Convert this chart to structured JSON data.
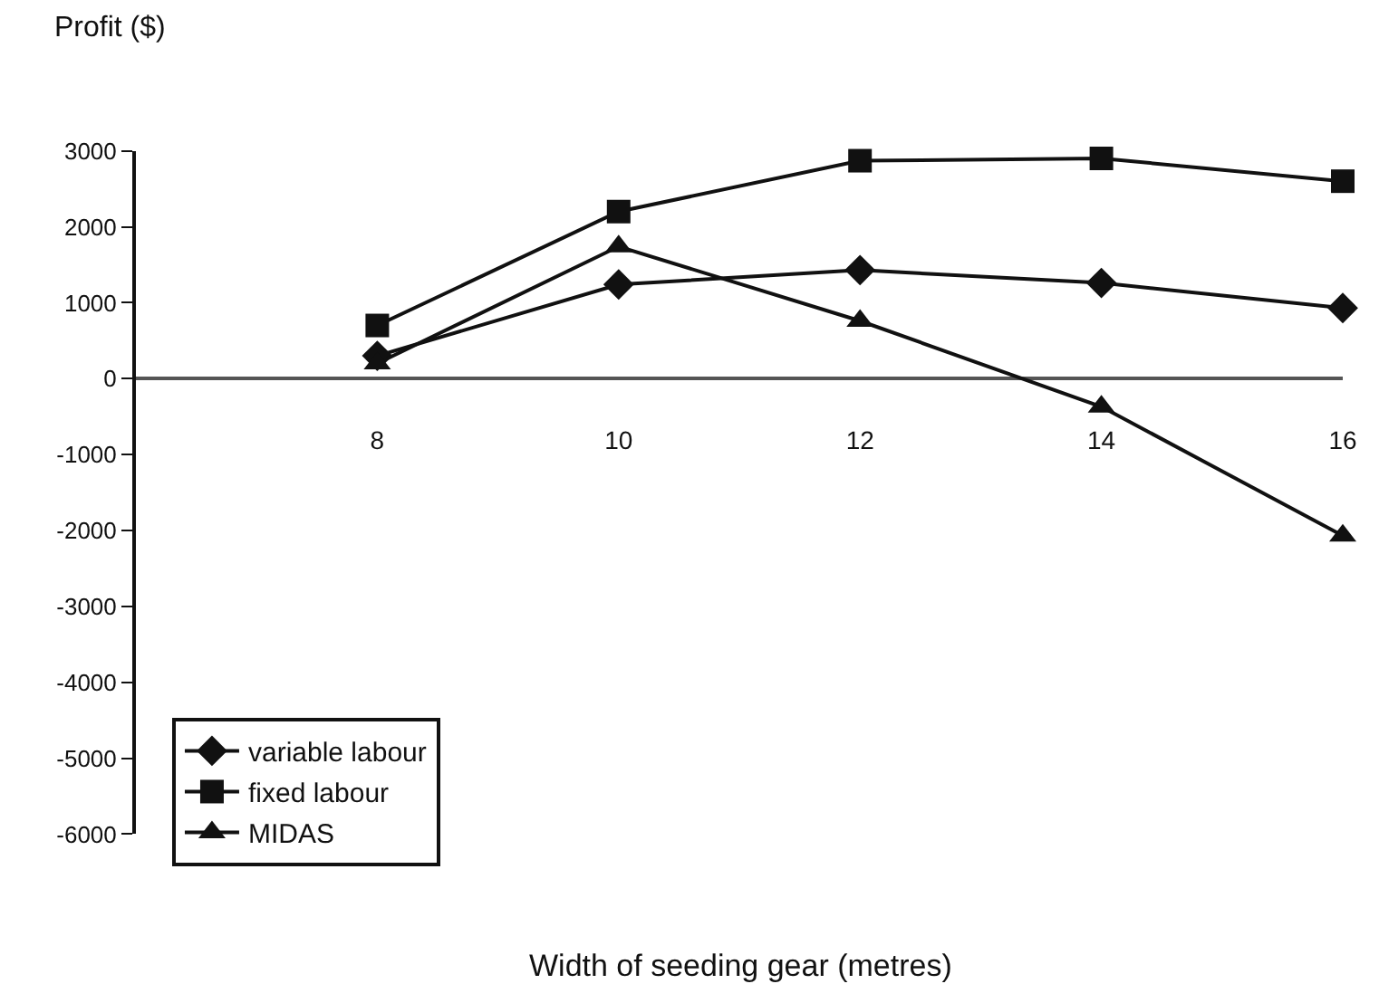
{
  "chart_data": {
    "type": "line",
    "ylabel": "Profit ($)",
    "xlabel": "Width of seeding gear (metres)",
    "x": [
      8,
      10,
      12,
      14,
      16
    ],
    "series": [
      {
        "name": "variable labour",
        "color": "#111111",
        "marker": "diamond",
        "values": [
          300,
          1240,
          1430,
          1260,
          930
        ]
      },
      {
        "name": "fixed labour",
        "color": "#111111",
        "marker": "square",
        "values": [
          700,
          2200,
          2870,
          2900,
          2600
        ]
      },
      {
        "name": "MIDAS",
        "color": "#111111",
        "marker": "triangle",
        "values": [
          200,
          1740,
          760,
          -370,
          -2070
        ]
      }
    ],
    "xlim": [
      6,
      16
    ],
    "xticks": [
      8,
      10,
      12,
      14,
      16
    ],
    "ylim": [
      -6000,
      3000
    ],
    "yticks": [
      3000,
      2000,
      1000,
      0,
      -1000,
      -2000,
      -3000,
      -4000,
      -5000,
      -6000
    ],
    "legend": "bottom left"
  }
}
